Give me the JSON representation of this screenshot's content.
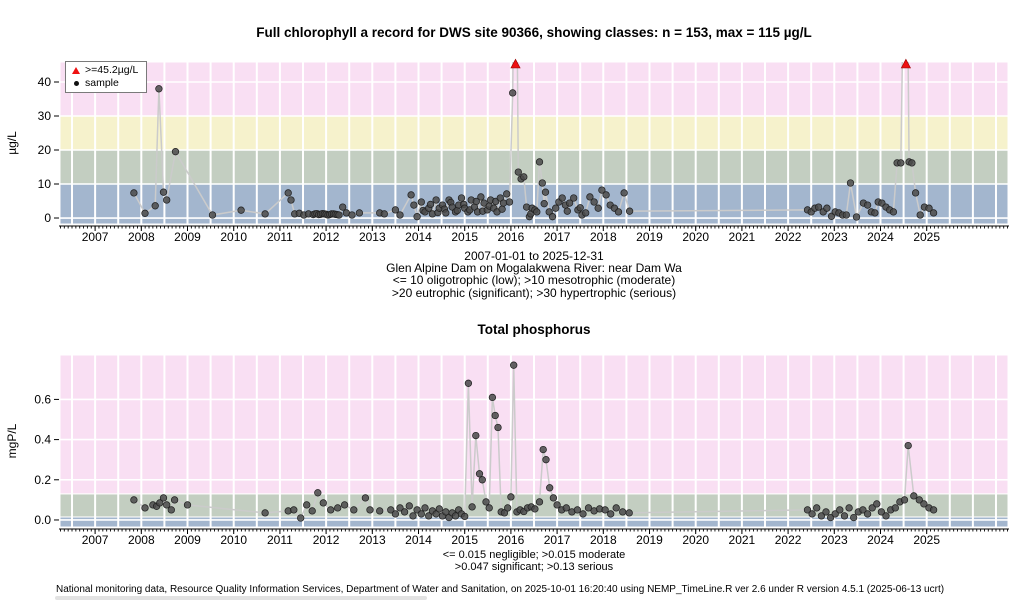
{
  "footer": {
    "text": "National monitoring data, Resource Quality Information Services, Department of Water and Sanitation, on 2025-10-01 16:20:40 using NEMP_TimeLine.R ver 2.6 under R version 4.5.1 (2025-06-13 ucrt)"
  },
  "chart_data": [
    {
      "type": "scatter",
      "series_name": "chlorophyll a samples",
      "title": "Full chlorophyll a record for DWS site 90366, showing classes: n = 153, max = 115 µg/L",
      "ylabel": "µg/L",
      "n": 153,
      "max": 115,
      "legend": {
        "capped_label": ">=45.2µg/L",
        "sample_label": "sample",
        "position": "top-left"
      },
      "captions": [
        "2007-01-01 to 2025-12-31",
        "Glen Alpine Dam on Mogalakwena River: near Dam Wa",
        "<= 10 oligotrophic (low); >10 mesotrophic (moderate)",
        ">20 eutrophic (significant); >30 hypertrophic (serious)"
      ],
      "xlim": [
        2006.24,
        2026.76
      ],
      "ylim": [
        -1.76,
        45.88
      ],
      "yticks": [
        0,
        10,
        20,
        30,
        40
      ],
      "ytick_labels": [
        "0",
        "10",
        "20",
        "30",
        "40"
      ],
      "xticks": [
        2007,
        2008,
        2009,
        2010,
        2011,
        2012,
        2013,
        2014,
        2015,
        2016,
        2017,
        2018,
        2019,
        2020,
        2021,
        2022,
        2023,
        2024,
        2025
      ],
      "grid": {
        "vertical_step_years": 0.5,
        "color": "#ffffff"
      },
      "bands": [
        {
          "label": "oligotrophic-low",
          "from": -1.76,
          "to": 10,
          "color": "#a3b6ce"
        },
        {
          "label": "mesotrophic-moderate",
          "from": 10,
          "to": 20,
          "color": "#c3cec1"
        },
        {
          "label": "eutrophic-significant",
          "from": 20,
          "to": 30,
          "color": "#f6f2cc"
        },
        {
          "label": "hypertrophic-serious",
          "from": 30,
          "to": 45.88,
          "color": "#f9dff3"
        }
      ],
      "colors": {
        "point": "#4a4a4a",
        "line": "#cbcbcb",
        "cap": "#ee1111"
      },
      "cap_display_value": 45.2,
      "capped_points": [
        [
          2016.1,
          115
        ],
        [
          2024.55,
          115
        ]
      ],
      "points": [
        [
          2007.84,
          7.4
        ],
        [
          2008.08,
          1.4
        ],
        [
          2008.3,
          3.6
        ],
        [
          2008.38,
          38
        ],
        [
          2008.48,
          7.6
        ],
        [
          2008.55,
          5.3
        ],
        [
          2008.74,
          19.5
        ],
        [
          2009.54,
          0.9
        ],
        [
          2010.16,
          2.3
        ],
        [
          2010.68,
          1.2
        ],
        [
          2011.18,
          7.4
        ],
        [
          2011.24,
          5.3
        ],
        [
          2011.32,
          1.2
        ],
        [
          2011.42,
          1.4
        ],
        [
          2011.52,
          0.9
        ],
        [
          2011.62,
          1.2
        ],
        [
          2011.72,
          1.0
        ],
        [
          2011.76,
          1.2
        ],
        [
          2011.8,
          1.3
        ],
        [
          2011.84,
          1.0
        ],
        [
          2011.88,
          1.1
        ],
        [
          2011.92,
          1.3
        ],
        [
          2011.96,
          1.2
        ],
        [
          2012.0,
          1.1
        ],
        [
          2012.04,
          0.9
        ],
        [
          2012.08,
          1.0
        ],
        [
          2012.12,
          1.2
        ],
        [
          2012.16,
          1.2
        ],
        [
          2012.2,
          1.1
        ],
        [
          2012.24,
          1.0
        ],
        [
          2012.28,
          0.9
        ],
        [
          2012.36,
          3.2
        ],
        [
          2012.44,
          1.5
        ],
        [
          2012.56,
          0.9
        ],
        [
          2012.72,
          1.5
        ],
        [
          2013.16,
          1.5
        ],
        [
          2013.26,
          1.2
        ],
        [
          2013.5,
          2.4
        ],
        [
          2013.6,
          0.9
        ],
        [
          2013.84,
          6.8
        ],
        [
          2013.9,
          3.8
        ],
        [
          2013.97,
          0.4
        ],
        [
          2014.06,
          4.7
        ],
        [
          2014.1,
          2.2
        ],
        [
          2014.14,
          1.8
        ],
        [
          2014.22,
          2.9
        ],
        [
          2014.26,
          4.0
        ],
        [
          2014.3,
          1.2
        ],
        [
          2014.38,
          5.3
        ],
        [
          2014.42,
          1.6
        ],
        [
          2014.45,
          2.9
        ],
        [
          2014.52,
          3.8
        ],
        [
          2014.56,
          2.6
        ],
        [
          2014.59,
          1.5
        ],
        [
          2014.66,
          5.3
        ],
        [
          2014.7,
          4.6
        ],
        [
          2014.73,
          3.2
        ],
        [
          2014.8,
          1.8
        ],
        [
          2014.84,
          2.2
        ],
        [
          2014.87,
          3.8
        ],
        [
          2014.93,
          5.9
        ],
        [
          2014.98,
          4.0
        ],
        [
          2015.0,
          2.9
        ],
        [
          2015.07,
          1.8
        ],
        [
          2015.11,
          2.4
        ],
        [
          2015.14,
          5.3
        ],
        [
          2015.21,
          3.2
        ],
        [
          2015.25,
          4.9
        ],
        [
          2015.28,
          1.8
        ],
        [
          2015.35,
          6.2
        ],
        [
          2015.39,
          2.0
        ],
        [
          2015.42,
          4.4
        ],
        [
          2015.49,
          2.4
        ],
        [
          2015.53,
          3.5
        ],
        [
          2015.56,
          5.3
        ],
        [
          2015.63,
          2.9
        ],
        [
          2015.67,
          4.9
        ],
        [
          2015.7,
          1.8
        ],
        [
          2015.77,
          5.9
        ],
        [
          2015.81,
          2.6
        ],
        [
          2015.84,
          4.4
        ],
        [
          2015.91,
          7.1
        ],
        [
          2015.97,
          4.7
        ],
        [
          2016.04,
          36.8
        ],
        [
          2016.16,
          13.5
        ],
        [
          2016.22,
          11.5
        ],
        [
          2016.28,
          12.1
        ],
        [
          2016.34,
          3.2
        ],
        [
          2016.4,
          0.4
        ],
        [
          2016.43,
          1.2
        ],
        [
          2016.46,
          2.9
        ],
        [
          2016.52,
          2.4
        ],
        [
          2016.56,
          1.8
        ],
        [
          2016.62,
          16.5
        ],
        [
          2016.68,
          10.3
        ],
        [
          2016.72,
          4.2
        ],
        [
          2016.75,
          7.6
        ],
        [
          2016.83,
          1.8
        ],
        [
          2016.9,
          0.4
        ],
        [
          2016.97,
          2.9
        ],
        [
          2017.04,
          4.7
        ],
        [
          2017.11,
          5.9
        ],
        [
          2017.18,
          3.8
        ],
        [
          2017.22,
          2.0
        ],
        [
          2017.27,
          4.4
        ],
        [
          2017.36,
          5.9
        ],
        [
          2017.45,
          2.4
        ],
        [
          2017.5,
          3.0
        ],
        [
          2017.54,
          0.9
        ],
        [
          2017.62,
          1.5
        ],
        [
          2017.71,
          6.2
        ],
        [
          2017.8,
          4.7
        ],
        [
          2017.89,
          2.9
        ],
        [
          2017.97,
          8.2
        ],
        [
          2018.06,
          6.8
        ],
        [
          2018.15,
          3.8
        ],
        [
          2018.24,
          2.9
        ],
        [
          2018.33,
          1.8
        ],
        [
          2018.45,
          7.4
        ],
        [
          2018.57,
          2.0
        ],
        [
          2022.42,
          2.4
        ],
        [
          2022.5,
          1.8
        ],
        [
          2022.58,
          2.9
        ],
        [
          2022.66,
          3.2
        ],
        [
          2022.76,
          1.8
        ],
        [
          2022.84,
          2.9
        ],
        [
          2022.94,
          0.5
        ],
        [
          2023.02,
          1.8
        ],
        [
          2023.1,
          1.5
        ],
        [
          2023.18,
          0.9
        ],
        [
          2023.26,
          0.9
        ],
        [
          2023.35,
          10.3
        ],
        [
          2023.48,
          0.3
        ],
        [
          2023.63,
          4.4
        ],
        [
          2023.72,
          3.8
        ],
        [
          2023.8,
          1.8
        ],
        [
          2023.88,
          1.5
        ],
        [
          2023.95,
          4.7
        ],
        [
          2024.03,
          4.4
        ],
        [
          2024.12,
          3.2
        ],
        [
          2024.2,
          2.4
        ],
        [
          2024.28,
          1.8
        ],
        [
          2024.36,
          16.2
        ],
        [
          2024.44,
          16.2
        ],
        [
          2024.62,
          16.5
        ],
        [
          2024.68,
          16.2
        ],
        [
          2024.76,
          7.4
        ],
        [
          2024.86,
          0.9
        ],
        [
          2024.95,
          3.2
        ],
        [
          2025.05,
          2.9
        ],
        [
          2025.15,
          1.5
        ]
      ]
    },
    {
      "type": "scatter",
      "series_name": "total phosphorus samples",
      "title": "Total phosphorus",
      "ylabel": "mgP/L",
      "captions": [
        "<= 0.015 negligible; >0.015 moderate",
        ">0.047 significant; >0.13 serious"
      ],
      "xlim": [
        2006.24,
        2026.76
      ],
      "ylim": [
        -0.035,
        0.821
      ],
      "yticks": [
        0,
        0.2,
        0.4,
        0.6
      ],
      "ytick_labels": [
        "0.0",
        "0.2",
        "0.4",
        "0.6"
      ],
      "xticks": [
        2007,
        2008,
        2009,
        2010,
        2011,
        2012,
        2013,
        2014,
        2015,
        2016,
        2017,
        2018,
        2019,
        2020,
        2021,
        2022,
        2023,
        2024,
        2025
      ],
      "grid": {
        "vertical_step_years": 0.5,
        "color": "#ffffff"
      },
      "bands": [
        {
          "label": "negligible",
          "from": -0.035,
          "to": 0.015,
          "color": "#a3b6ce"
        },
        {
          "label": "moderate-significant",
          "from": 0.015,
          "to": 0.13,
          "color": "#c3cec1"
        },
        {
          "label": "serious",
          "from": 0.13,
          "to": 0.821,
          "color": "#f9dff3"
        }
      ],
      "colors": {
        "point": "#4a4a4a",
        "line": "#cbcbcb",
        "cap": "#ee1111"
      },
      "cap_display_value": null,
      "capped_points": [],
      "points": [
        [
          2007.84,
          0.1
        ],
        [
          2008.08,
          0.06
        ],
        [
          2008.25,
          0.075
        ],
        [
          2008.33,
          0.068
        ],
        [
          2008.4,
          0.085
        ],
        [
          2008.48,
          0.11
        ],
        [
          2008.55,
          0.075
        ],
        [
          2008.65,
          0.05
        ],
        [
          2008.72,
          0.1
        ],
        [
          2009.0,
          0.075
        ],
        [
          2010.68,
          0.035
        ],
        [
          2011.18,
          0.045
        ],
        [
          2011.3,
          0.05
        ],
        [
          2011.45,
          0.01
        ],
        [
          2011.58,
          0.075
        ],
        [
          2011.7,
          0.045
        ],
        [
          2011.82,
          0.135
        ],
        [
          2011.94,
          0.085
        ],
        [
          2012.1,
          0.05
        ],
        [
          2012.25,
          0.06
        ],
        [
          2012.4,
          0.075
        ],
        [
          2012.6,
          0.05
        ],
        [
          2012.85,
          0.11
        ],
        [
          2012.95,
          0.05
        ],
        [
          2013.16,
          0.045
        ],
        [
          2013.4,
          0.05
        ],
        [
          2013.5,
          0.03
        ],
        [
          2013.6,
          0.06
        ],
        [
          2013.7,
          0.04
        ],
        [
          2013.8,
          0.07
        ],
        [
          2013.88,
          0.02
        ],
        [
          2013.97,
          0.05
        ],
        [
          2014.06,
          0.03
        ],
        [
          2014.14,
          0.06
        ],
        [
          2014.22,
          0.02
        ],
        [
          2014.3,
          0.045
        ],
        [
          2014.38,
          0.03
        ],
        [
          2014.45,
          0.055
        ],
        [
          2014.52,
          0.02
        ],
        [
          2014.59,
          0.04
        ],
        [
          2014.66,
          0.012
        ],
        [
          2014.73,
          0.035
        ],
        [
          2014.8,
          0.02
        ],
        [
          2014.87,
          0.05
        ],
        [
          2014.93,
          0.03
        ],
        [
          2015.0,
          0.018
        ],
        [
          2015.08,
          0.68
        ],
        [
          2015.16,
          0.065
        ],
        [
          2015.24,
          0.42
        ],
        [
          2015.32,
          0.23
        ],
        [
          2015.38,
          0.2
        ],
        [
          2015.46,
          0.09
        ],
        [
          2015.53,
          0.06
        ],
        [
          2015.6,
          0.61
        ],
        [
          2015.66,
          0.52
        ],
        [
          2015.72,
          0.46
        ],
        [
          2015.79,
          0.04
        ],
        [
          2015.86,
          0.035
        ],
        [
          2015.93,
          0.06
        ],
        [
          2016.0,
          0.115
        ],
        [
          2016.06,
          0.77
        ],
        [
          2016.13,
          0.04
        ],
        [
          2016.2,
          0.05
        ],
        [
          2016.28,
          0.042
        ],
        [
          2016.36,
          0.06
        ],
        [
          2016.44,
          0.065
        ],
        [
          2016.52,
          0.055
        ],
        [
          2016.62,
          0.09
        ],
        [
          2016.7,
          0.35
        ],
        [
          2016.76,
          0.3
        ],
        [
          2016.84,
          0.16
        ],
        [
          2016.92,
          0.11
        ],
        [
          2017.0,
          0.075
        ],
        [
          2017.1,
          0.05
        ],
        [
          2017.2,
          0.06
        ],
        [
          2017.32,
          0.04
        ],
        [
          2017.44,
          0.05
        ],
        [
          2017.56,
          0.03
        ],
        [
          2017.68,
          0.06
        ],
        [
          2017.8,
          0.045
        ],
        [
          2017.92,
          0.055
        ],
        [
          2018.04,
          0.05
        ],
        [
          2018.16,
          0.03
        ],
        [
          2018.28,
          0.06
        ],
        [
          2018.42,
          0.04
        ],
        [
          2018.56,
          0.035
        ],
        [
          2022.42,
          0.05
        ],
        [
          2022.52,
          0.03
        ],
        [
          2022.62,
          0.06
        ],
        [
          2022.72,
          0.02
        ],
        [
          2022.82,
          0.04
        ],
        [
          2022.92,
          0.012
        ],
        [
          2023.02,
          0.03
        ],
        [
          2023.12,
          0.05
        ],
        [
          2023.22,
          0.02
        ],
        [
          2023.32,
          0.06
        ],
        [
          2023.42,
          0.012
        ],
        [
          2023.52,
          0.04
        ],
        [
          2023.62,
          0.05
        ],
        [
          2023.72,
          0.03
        ],
        [
          2023.82,
          0.06
        ],
        [
          2023.92,
          0.08
        ],
        [
          2024.02,
          0.04
        ],
        [
          2024.12,
          0.02
        ],
        [
          2024.22,
          0.05
        ],
        [
          2024.32,
          0.06
        ],
        [
          2024.42,
          0.09
        ],
        [
          2024.52,
          0.1
        ],
        [
          2024.6,
          0.37
        ],
        [
          2024.72,
          0.12
        ],
        [
          2024.84,
          0.1
        ],
        [
          2024.94,
          0.08
        ],
        [
          2025.05,
          0.06
        ],
        [
          2025.15,
          0.05
        ]
      ]
    }
  ]
}
